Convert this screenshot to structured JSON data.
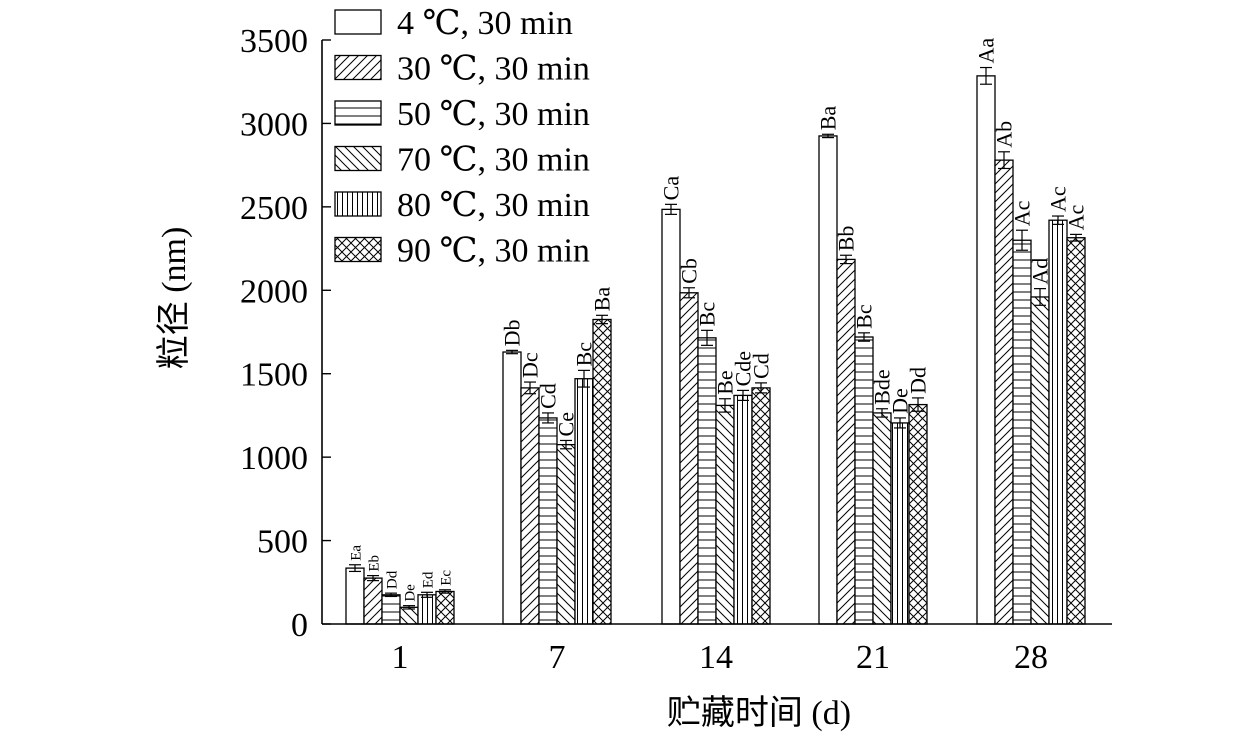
{
  "chart_data": {
    "type": "bar",
    "xlabel": "贮藏时间 (d)",
    "ylabel": "粒径 (nm)",
    "categories": [
      "1",
      "7",
      "14",
      "21",
      "28"
    ],
    "ylim": [
      0,
      3500
    ],
    "yticks": [
      0,
      500,
      1000,
      1500,
      2000,
      2500,
      3000,
      3500
    ],
    "grid": false,
    "legend_position": "top-left",
    "series": [
      {
        "name": "4 ℃, 30 min",
        "pattern": "blank",
        "values": [
          335,
          1630,
          2485,
          2925,
          3285
        ],
        "errors": [
          20,
          10,
          30,
          10,
          50
        ],
        "labels": [
          "Ea",
          "Db",
          "Ca",
          "Ba",
          "Aa"
        ]
      },
      {
        "name": "30 ℃, 30 min",
        "pattern": "diagonal-up",
        "values": [
          275,
          1415,
          1985,
          2185,
          2780
        ],
        "errors": [
          15,
          35,
          30,
          25,
          50
        ],
        "labels": [
          "Eb",
          "Dc",
          "Cb",
          "Bb",
          "Ab"
        ]
      },
      {
        "name": "50 ℃, 30 min",
        "pattern": "horizontal",
        "values": [
          175,
          1235,
          1715,
          1720,
          2300
        ],
        "errors": [
          10,
          30,
          45,
          25,
          60
        ],
        "labels": [
          "Dd",
          "Cd",
          "Bc",
          "Bc",
          "Ac"
        ]
      },
      {
        "name": "70 ℃, 30 min",
        "pattern": "diagonal-down",
        "values": [
          100,
          1075,
          1310,
          1265,
          1960
        ],
        "errors": [
          10,
          25,
          40,
          25,
          50
        ],
        "labels": [
          "De",
          "Ce",
          "Be",
          "Bde",
          "Ad"
        ]
      },
      {
        "name": "80 ℃, 30 min",
        "pattern": "vertical",
        "values": [
          175,
          1470,
          1370,
          1205,
          2420
        ],
        "errors": [
          15,
          50,
          30,
          30,
          25
        ],
        "labels": [
          "Ed",
          "Bc",
          "Cde",
          "De",
          "Ac"
        ]
      },
      {
        "name": "90 ℃, 30 min",
        "pattern": "crosshatch",
        "values": [
          195,
          1825,
          1415,
          1315,
          2315
        ],
        "errors": [
          10,
          25,
          30,
          40,
          20
        ],
        "labels": [
          "Ec",
          "Ba",
          "Cd",
          "Dd",
          "Ac"
        ]
      }
    ]
  }
}
